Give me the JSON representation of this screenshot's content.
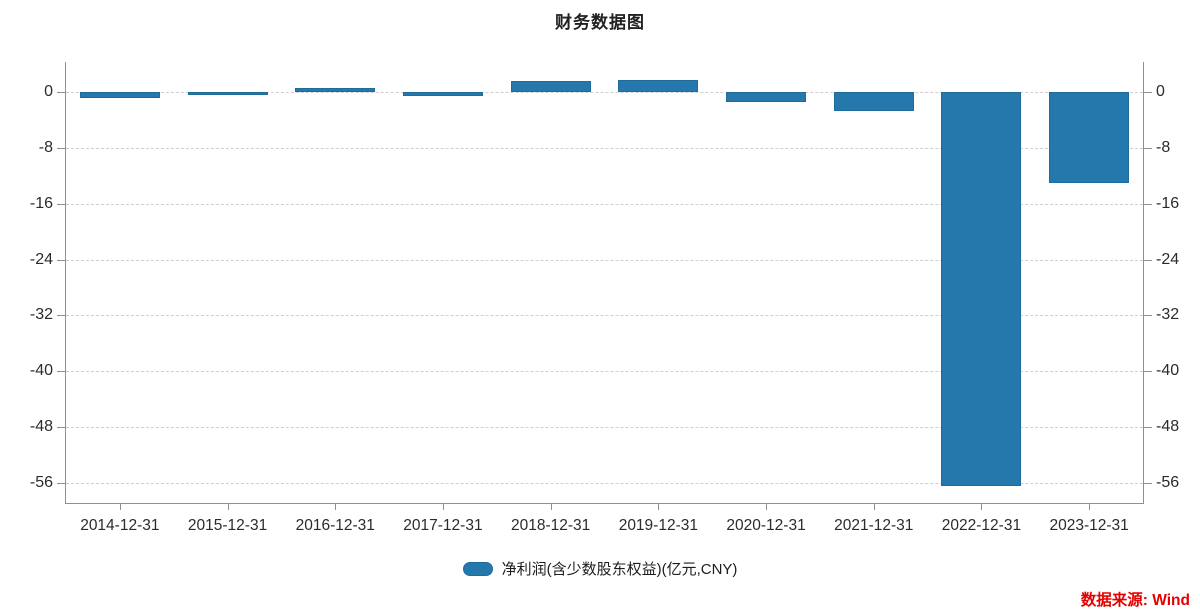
{
  "title": "财务数据图",
  "legend": {
    "label": "净利润(含少数股东权益)(亿元,CNY)",
    "swatch_color": "#2478ab"
  },
  "source": "数据来源: Wind",
  "colors": {
    "bar": "#2478ab",
    "axis": "#8f8f8f",
    "grid": "#cfcfcf",
    "text": "#2b2b2b",
    "source_red": "#e60000"
  },
  "chart_data": {
    "type": "bar",
    "title": "财务数据图",
    "categories": [
      "2014-12-31",
      "2015-12-31",
      "2016-12-31",
      "2017-12-31",
      "2018-12-31",
      "2019-12-31",
      "2020-12-31",
      "2021-12-31",
      "2022-12-31",
      "2023-12-31"
    ],
    "series": [
      {
        "name": "净利润(含少数股东权益)(亿元,CNY)",
        "values": [
          -0.9,
          -0.3,
          0.6,
          -0.6,
          1.6,
          1.7,
          -1.5,
          -2.7,
          -56.5,
          -13.0
        ]
      }
    ],
    "xlabel": "",
    "ylabel": "",
    "yticks": [
      0,
      -8,
      -16,
      -24,
      -32,
      -40,
      -48,
      -56
    ],
    "ylim": [
      -59,
      4.3
    ],
    "grid": "horizontal-dashed",
    "legend_position": "bottom",
    "dual_y_axis": true
  }
}
